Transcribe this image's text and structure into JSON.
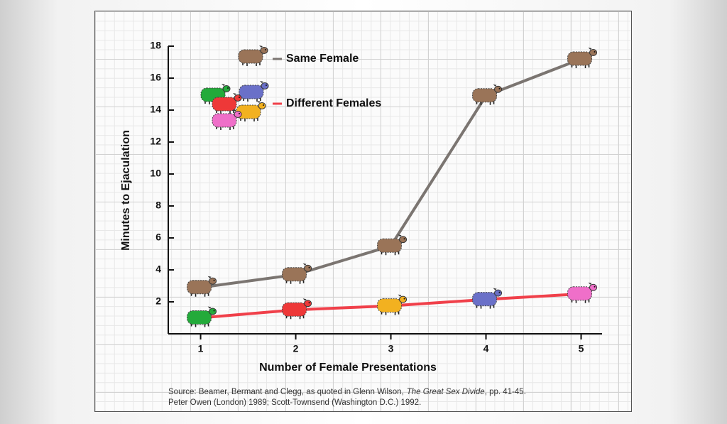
{
  "chart_data": {
    "type": "line",
    "x_label": "Number of Female Presentations",
    "y_label": "Minutes to Ejaculation",
    "x": [
      1,
      2,
      3,
      4,
      5
    ],
    "xlim": [
      0.66,
      5.22
    ],
    "xticks": [
      1,
      2,
      3,
      4,
      5
    ],
    "ylim": [
      0,
      18
    ],
    "yticks": [
      2,
      4,
      6,
      8,
      10,
      12,
      14,
      16,
      18
    ],
    "series": [
      {
        "name": "Same Female",
        "color": "#7b7571",
        "values": [
          2.9,
          3.7,
          5.5,
          14.9,
          17.2
        ],
        "point_colors": [
          "#9a7458",
          "#9a7458",
          "#9a7458",
          "#9a7458",
          "#9a7458"
        ]
      },
      {
        "name": "Different Females",
        "color": "#f0404a",
        "values": [
          1.0,
          1.5,
          1.75,
          2.15,
          2.5
        ],
        "point_colors": [
          "#23aa3a",
          "#ee3838",
          "#f2b120",
          "#6a70c8",
          "#ef6fc9"
        ]
      }
    ],
    "source": {
      "line1": [
        "Source: Beamer, Bermant and Clegg, as quoted in Glenn Wilson,",
        "The Great Sex Divide",
        ", pp. 41-45."
      ],
      "line2": "Peter Owen (London) 1989; Scott-Townsend (Washington D.C.) 1992."
    }
  }
}
